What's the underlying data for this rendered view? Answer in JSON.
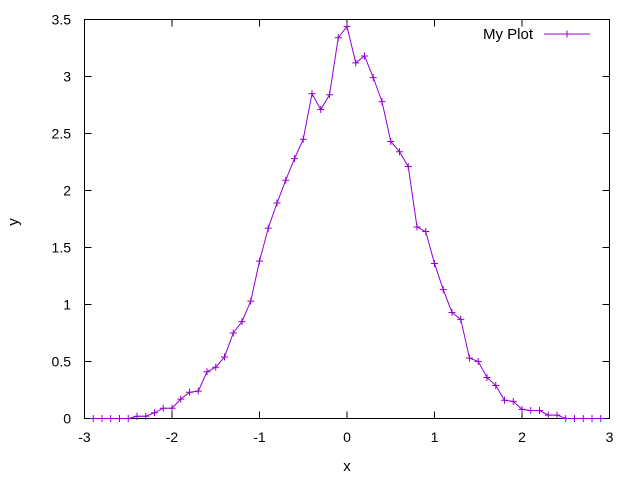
{
  "chart_data": {
    "type": "line",
    "title": "",
    "xlabel": "x",
    "ylabel": "y",
    "xlim": [
      -3,
      3
    ],
    "ylim": [
      0,
      3.5
    ],
    "xticks": [
      -3,
      -2,
      -1,
      0,
      1,
      2,
      3
    ],
    "yticks": [
      0,
      0.5,
      1,
      1.5,
      2,
      2.5,
      3,
      3.5
    ],
    "xtick_labels": [
      "-3",
      "-2",
      "-1",
      "0",
      "1",
      "2",
      "3"
    ],
    "ytick_labels": [
      "0",
      "0.5",
      "1",
      "1.5",
      "2",
      "2.5",
      "3",
      "3.5"
    ],
    "grid": false,
    "legend_position": "top-right",
    "marker": "plus",
    "series": [
      {
        "name": "My Plot",
        "color": "#9400d3",
        "x": [
          -2.9,
          -2.8,
          -2.7,
          -2.6,
          -2.5,
          -2.4,
          -2.3,
          -2.2,
          -2.1,
          -2.0,
          -1.9,
          -1.8,
          -1.7,
          -1.6,
          -1.5,
          -1.4,
          -1.3,
          -1.2,
          -1.1,
          -1.0,
          -0.9,
          -0.8,
          -0.7,
          -0.6,
          -0.5,
          -0.4,
          -0.3,
          -0.2,
          -0.1,
          0.0,
          0.1,
          0.2,
          0.3,
          0.4,
          0.5,
          0.6,
          0.7,
          0.8,
          0.9,
          1.0,
          1.1,
          1.2,
          1.3,
          1.4,
          1.5,
          1.6,
          1.7,
          1.8,
          1.9,
          2.0,
          2.1,
          2.2,
          2.3,
          2.4,
          2.5,
          2.6,
          2.7,
          2.8,
          2.9
        ],
        "y": [
          0.0,
          0.0,
          0.0,
          0.0,
          0.0,
          0.02,
          0.02,
          0.05,
          0.09,
          0.09,
          0.17,
          0.23,
          0.24,
          0.41,
          0.45,
          0.54,
          0.75,
          0.85,
          1.03,
          1.38,
          1.67,
          1.89,
          2.09,
          2.28,
          2.45,
          2.85,
          2.71,
          2.84,
          3.34,
          3.44,
          3.12,
          3.18,
          2.99,
          2.78,
          2.43,
          2.34,
          2.21,
          1.68,
          1.64,
          1.36,
          1.13,
          0.93,
          0.87,
          0.53,
          0.5,
          0.36,
          0.29,
          0.16,
          0.15,
          0.08,
          0.07,
          0.07,
          0.03,
          0.03,
          0.0,
          0.0,
          0.0,
          0.0,
          0.0
        ]
      }
    ]
  }
}
